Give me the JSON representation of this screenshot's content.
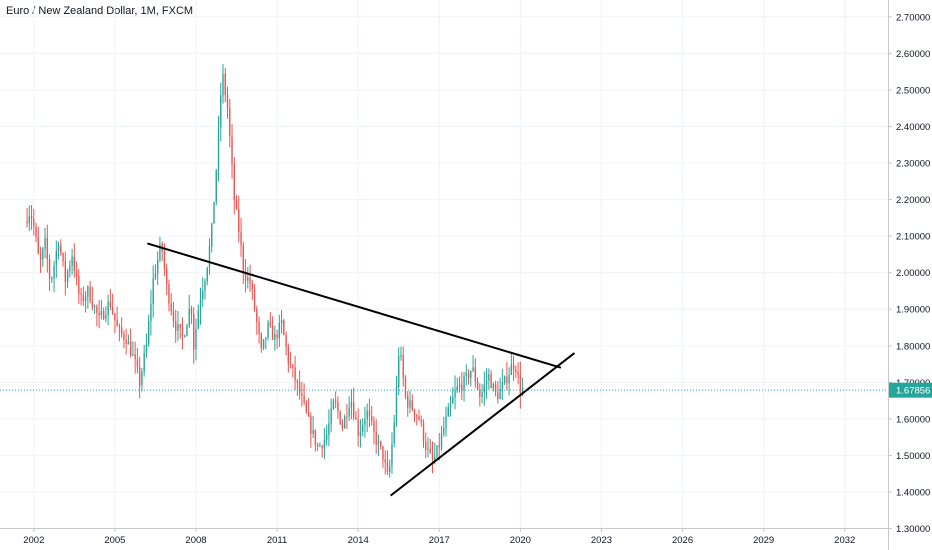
{
  "header": {
    "title": "Euro / New Zealand Dollar, 1M, FXCM"
  },
  "colors": {
    "up": "#26a69a",
    "down": "#ef5350",
    "grid": "#f0f3fa",
    "axis_line": "#c8c8c8",
    "last_price": "#26a69a",
    "trendline": "#000000"
  },
  "chart_data": {
    "type": "candlestick",
    "symbol": "EUR/NZD",
    "interval": "1M",
    "source": "FXCM",
    "last_price": 1.67856,
    "last_price_label": "1.67856",
    "ylim": [
      1.27,
      2.72
    ],
    "xlim": [
      2000.75,
      2033.6
    ],
    "y_ticks": [
      {
        "value": 2.7,
        "label": "2.70000"
      },
      {
        "value": 2.6,
        "label": "2.60000"
      },
      {
        "value": 2.5,
        "label": "2.50000"
      },
      {
        "value": 2.4,
        "label": "2.40000"
      },
      {
        "value": 2.3,
        "label": "2.30000"
      },
      {
        "value": 2.2,
        "label": "2.20000"
      },
      {
        "value": 2.1,
        "label": "2.10000"
      },
      {
        "value": 2.0,
        "label": "2.00000"
      },
      {
        "value": 1.9,
        "label": "1.90000"
      },
      {
        "value": 1.8,
        "label": "1.80000"
      },
      {
        "value": 1.7,
        "label": "1.70000"
      },
      {
        "value": 1.6,
        "label": "1.60000"
      },
      {
        "value": 1.5,
        "label": "1.50000"
      },
      {
        "value": 1.4,
        "label": "1.40000"
      },
      {
        "value": 1.3,
        "label": "1.30000"
      }
    ],
    "x_ticks": [
      {
        "value": 2002,
        "label": "2002"
      },
      {
        "value": 2005,
        "label": "2005"
      },
      {
        "value": 2008,
        "label": "2008"
      },
      {
        "value": 2011,
        "label": "2011"
      },
      {
        "value": 2014,
        "label": "2014"
      },
      {
        "value": 2017,
        "label": "2017"
      },
      {
        "value": 2020,
        "label": "2020"
      },
      {
        "value": 2023,
        "label": "2023"
      },
      {
        "value": 2026,
        "label": "2026"
      },
      {
        "value": 2029,
        "label": "2029"
      },
      {
        "value": 2032,
        "label": "2032"
      }
    ],
    "price_path": [
      [
        2001.75,
        2.14
      ],
      [
        2001.95,
        2.17
      ],
      [
        2002.1,
        2.12
      ],
      [
        2002.3,
        2.02
      ],
      [
        2002.5,
        2.08
      ],
      [
        2002.7,
        1.97
      ],
      [
        2003.0,
        2.09
      ],
      [
        2003.25,
        1.98
      ],
      [
        2003.5,
        2.05
      ],
      [
        2003.8,
        1.92
      ],
      [
        2004.1,
        1.95
      ],
      [
        2004.5,
        1.87
      ],
      [
        2004.9,
        1.92
      ],
      [
        2005.2,
        1.84
      ],
      [
        2005.5,
        1.82
      ],
      [
        2005.8,
        1.76
      ],
      [
        2006.0,
        1.7
      ],
      [
        2006.25,
        1.8
      ],
      [
        2006.5,
        1.98
      ],
      [
        2006.8,
        2.08
      ],
      [
        2007.0,
        1.96
      ],
      [
        2007.3,
        1.86
      ],
      [
        2007.6,
        1.82
      ],
      [
        2007.9,
        1.92
      ],
      [
        2008.0,
        1.8
      ],
      [
        2008.2,
        1.92
      ],
      [
        2008.45,
        2.0
      ],
      [
        2008.65,
        2.1
      ],
      [
        2008.85,
        2.3
      ],
      [
        2009.05,
        2.55
      ],
      [
        2009.25,
        2.45
      ],
      [
        2009.5,
        2.2
      ],
      [
        2009.7,
        2.1
      ],
      [
        2009.85,
        2.0
      ],
      [
        2010.1,
        1.97
      ],
      [
        2010.3,
        1.88
      ],
      [
        2010.5,
        1.78
      ],
      [
        2010.75,
        1.85
      ],
      [
        2011.0,
        1.82
      ],
      [
        2011.25,
        1.86
      ],
      [
        2011.5,
        1.76
      ],
      [
        2011.7,
        1.72
      ],
      [
        2012.0,
        1.65
      ],
      [
        2012.3,
        1.58
      ],
      [
        2012.6,
        1.52
      ],
      [
        2012.9,
        1.55
      ],
      [
        2013.2,
        1.65
      ],
      [
        2013.5,
        1.58
      ],
      [
        2013.8,
        1.66
      ],
      [
        2014.1,
        1.56
      ],
      [
        2014.4,
        1.62
      ],
      [
        2014.7,
        1.55
      ],
      [
        2015.0,
        1.5
      ],
      [
        2015.2,
        1.43
      ],
      [
        2015.45,
        1.62
      ],
      [
        2015.6,
        1.8
      ],
      [
        2015.85,
        1.65
      ],
      [
        2016.1,
        1.63
      ],
      [
        2016.35,
        1.6
      ],
      [
        2016.6,
        1.52
      ],
      [
        2016.85,
        1.48
      ],
      [
        2017.05,
        1.52
      ],
      [
        2017.35,
        1.6
      ],
      [
        2017.7,
        1.68
      ],
      [
        2018.0,
        1.7
      ],
      [
        2018.3,
        1.74
      ],
      [
        2018.6,
        1.66
      ],
      [
        2018.9,
        1.72
      ],
      [
        2019.2,
        1.66
      ],
      [
        2019.5,
        1.7
      ],
      [
        2019.8,
        1.75
      ],
      [
        2019.95,
        1.74
      ],
      [
        2020.05,
        1.68
      ]
    ],
    "trendlines": [
      {
        "name": "descending-resistance",
        "x1": 2006.2,
        "y1": 2.08,
        "x2": 2021.5,
        "y2": 1.74
      },
      {
        "name": "ascending-support",
        "x1": 2015.2,
        "y1": 1.39,
        "x2": 2022.0,
        "y2": 1.78
      }
    ],
    "grid": true
  }
}
